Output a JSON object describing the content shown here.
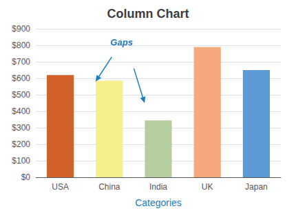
{
  "chart_data": {
    "type": "bar",
    "title": "Column Chart",
    "xlabel": "Categories",
    "categories": [
      "USA",
      "China",
      "India",
      "UK",
      "Japan"
    ],
    "values": [
      620,
      585,
      345,
      790,
      650
    ],
    "colors": [
      "#D2622A",
      "#F5F08A",
      "#B5CFA0",
      "#F4A87C",
      "#5B9BD5"
    ],
    "ylim": [
      0,
      900
    ],
    "yticks": [
      {
        "value": 0,
        "label": "$0"
      },
      {
        "value": 100,
        "label": "$100"
      },
      {
        "value": 200,
        "label": "$200"
      },
      {
        "value": 300,
        "label": "$300"
      },
      {
        "value": 400,
        "label": "$400"
      },
      {
        "value": 500,
        "label": "$500"
      },
      {
        "value": 600,
        "label": "$600"
      },
      {
        "value": 700,
        "label": "$700"
      },
      {
        "value": 800,
        "label": "$800"
      },
      {
        "value": 900,
        "label": "$900"
      }
    ],
    "grid": true,
    "annotations": [
      "Gaps"
    ]
  }
}
